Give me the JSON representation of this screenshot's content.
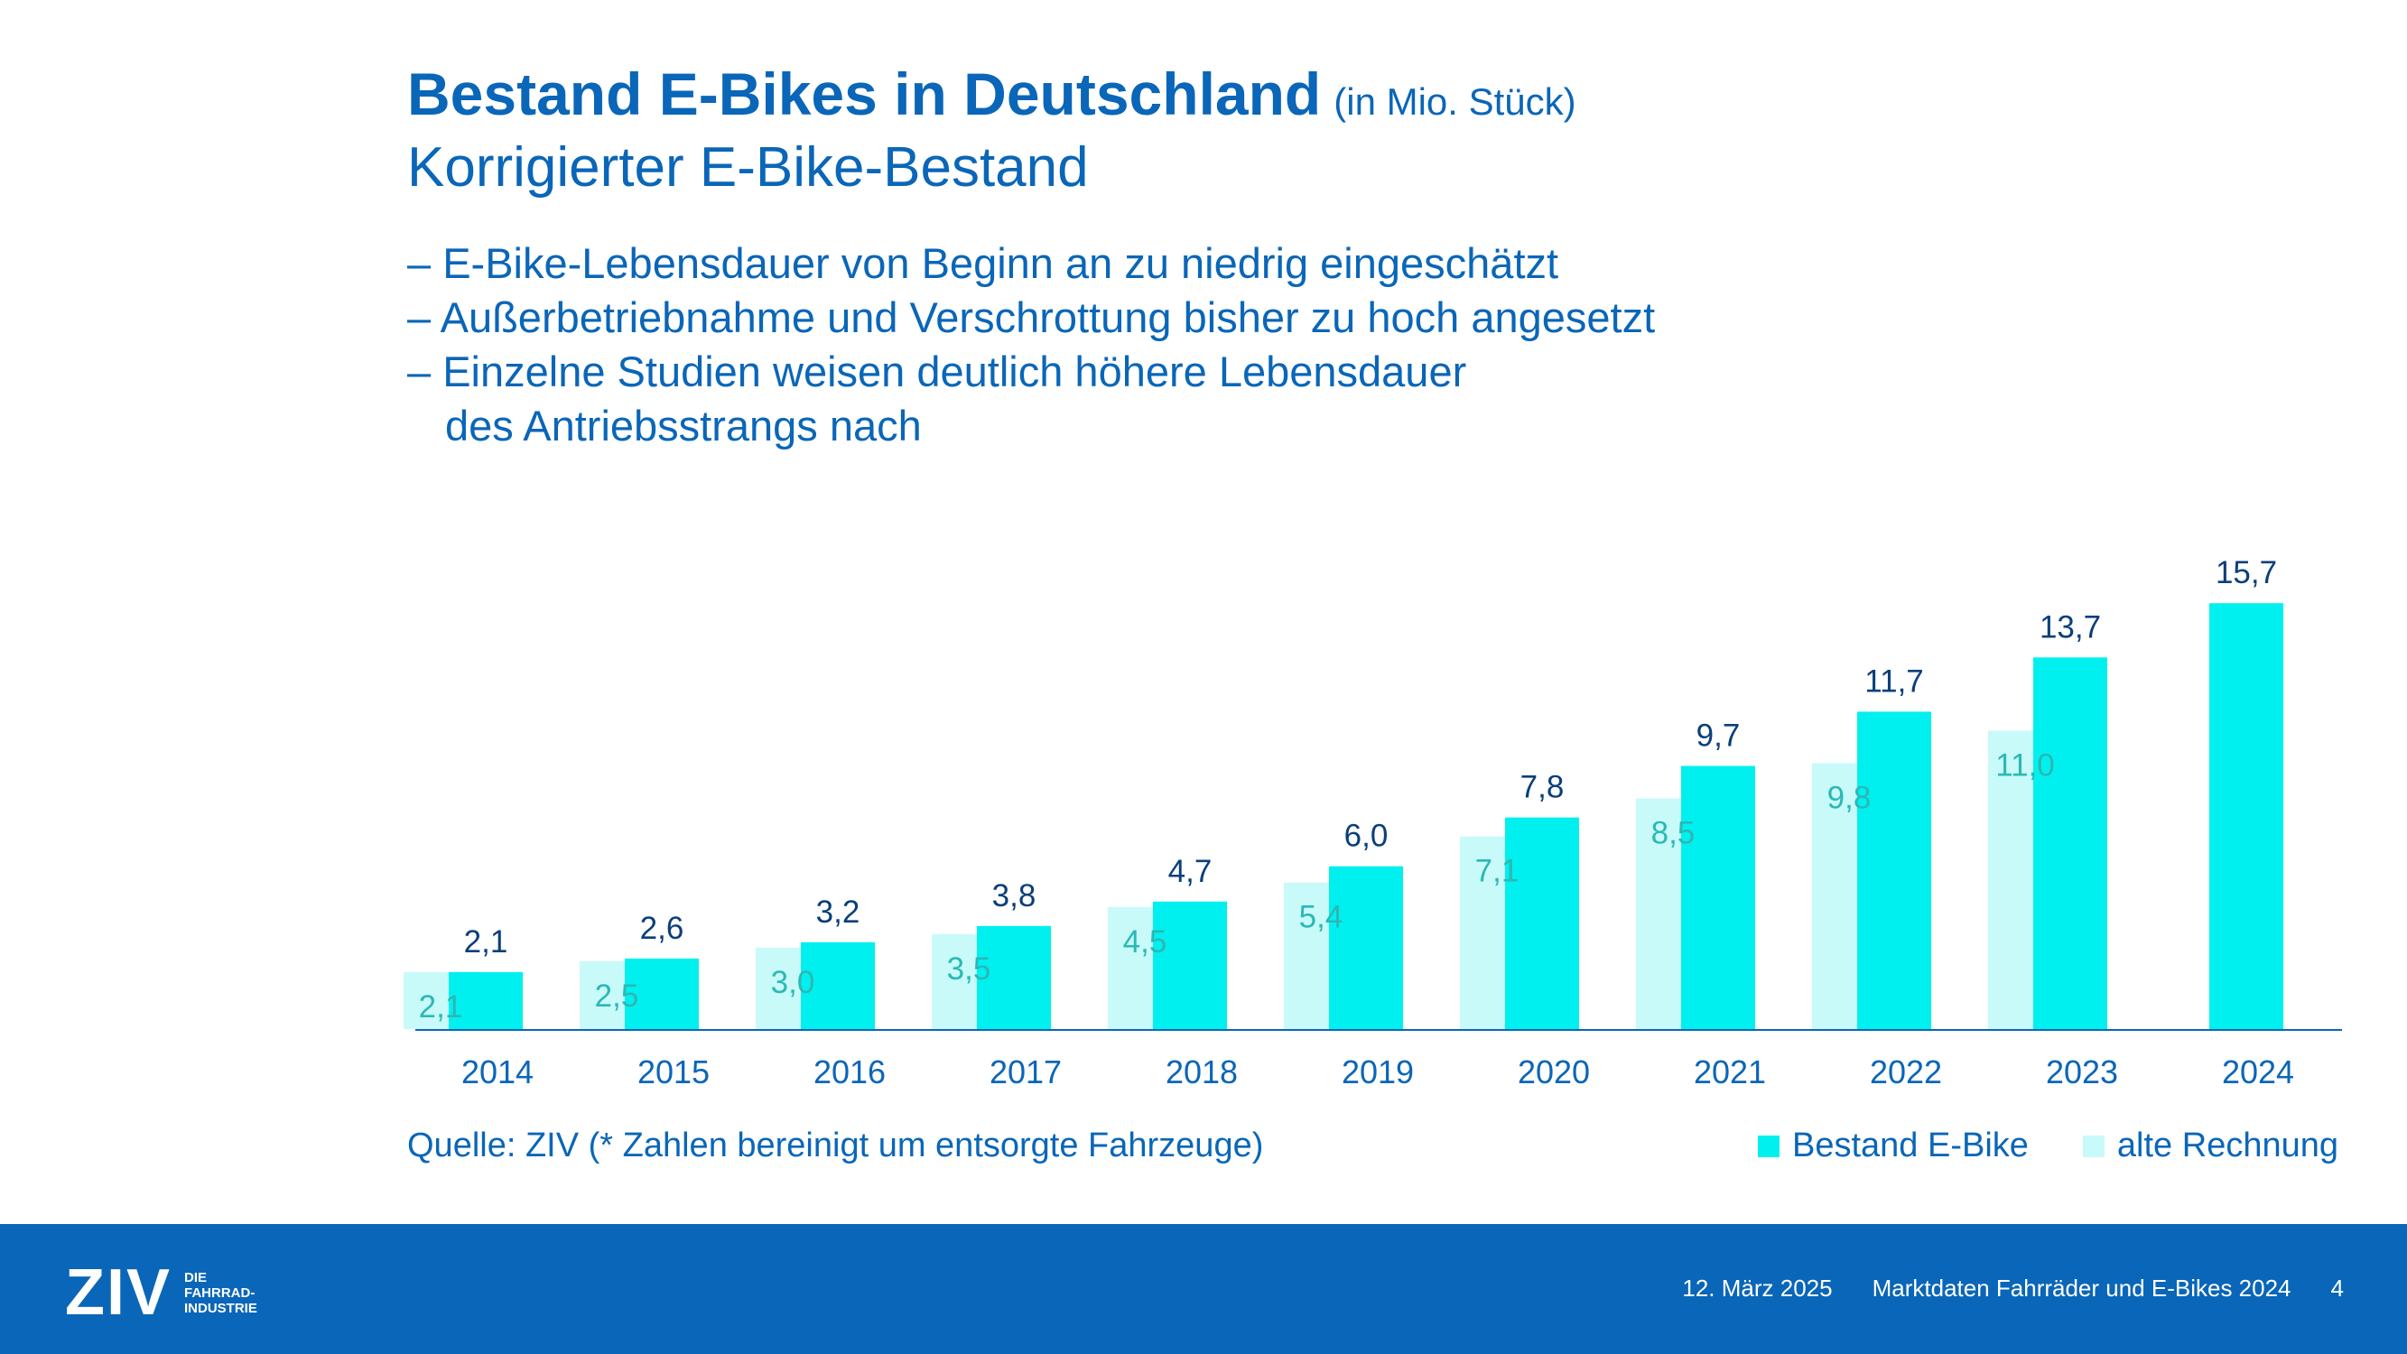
{
  "slide": {
    "title": "Bestand E-Bikes in Deutschland",
    "title_unit": "(in Mio. Stück)",
    "subtitle": "Korrigierter E-Bike-Bestand",
    "bullets": [
      "– E-Bike-Lebensdauer von Beginn an zu niedrig eingeschätzt",
      "– Außerbetriebnahme und Verschrottung bisher zu hoch angesetzt",
      "– Einzelne Studien weisen deutlich höhere Lebensdauer",
      "des Antriebsstrangs nach"
    ],
    "source": "Quelle: ZIV (* Zahlen bereinigt um entsorgte Fahrzeuge)"
  },
  "colors": {
    "accent": "#0a66b8",
    "series_main": "#00f0f0",
    "series_old": "#c8fafa",
    "old_label": "#2cb8b4",
    "main_label": "#0a3f7a"
  },
  "chart_data": {
    "type": "bar",
    "categories": [
      "2014",
      "2015",
      "2016",
      "2017",
      "2018",
      "2019",
      "2020",
      "2021",
      "2022",
      "2023",
      "2024"
    ],
    "series": [
      {
        "name": "alte Rechnung",
        "values": [
          2.1,
          2.5,
          3.0,
          3.5,
          4.5,
          5.4,
          7.1,
          8.5,
          9.8,
          11.0,
          null
        ],
        "labels": [
          "2,1",
          "2,5",
          "3,0",
          "3,5",
          "4,5",
          "5,4",
          "7,1",
          "8,5",
          "9,8",
          "11,0",
          ""
        ]
      },
      {
        "name": "Bestand E-Bike",
        "values": [
          2.1,
          2.6,
          3.2,
          3.8,
          4.7,
          6.0,
          7.8,
          9.7,
          11.7,
          13.7,
          15.7
        ],
        "labels": [
          "2,1",
          "2,6",
          "3,2",
          "3,8",
          "4,7",
          "6,0",
          "7,8",
          "9,7",
          "11,7",
          "13,7",
          "15,7"
        ]
      }
    ],
    "legend": [
      "Bestand E-Bike",
      "alte Rechnung"
    ],
    "legend_position": "bottom-right",
    "ylim": [
      0,
      16
    ],
    "grid": false
  },
  "footer": {
    "logo_mark": "ZIV",
    "logo_lines": [
      "DIE",
      "FAHRRAD-",
      "INDUSTRIE"
    ],
    "date": "12. März 2025",
    "doc_title": "Marktdaten Fahrräder und E-Bikes 2024",
    "page": "4"
  }
}
